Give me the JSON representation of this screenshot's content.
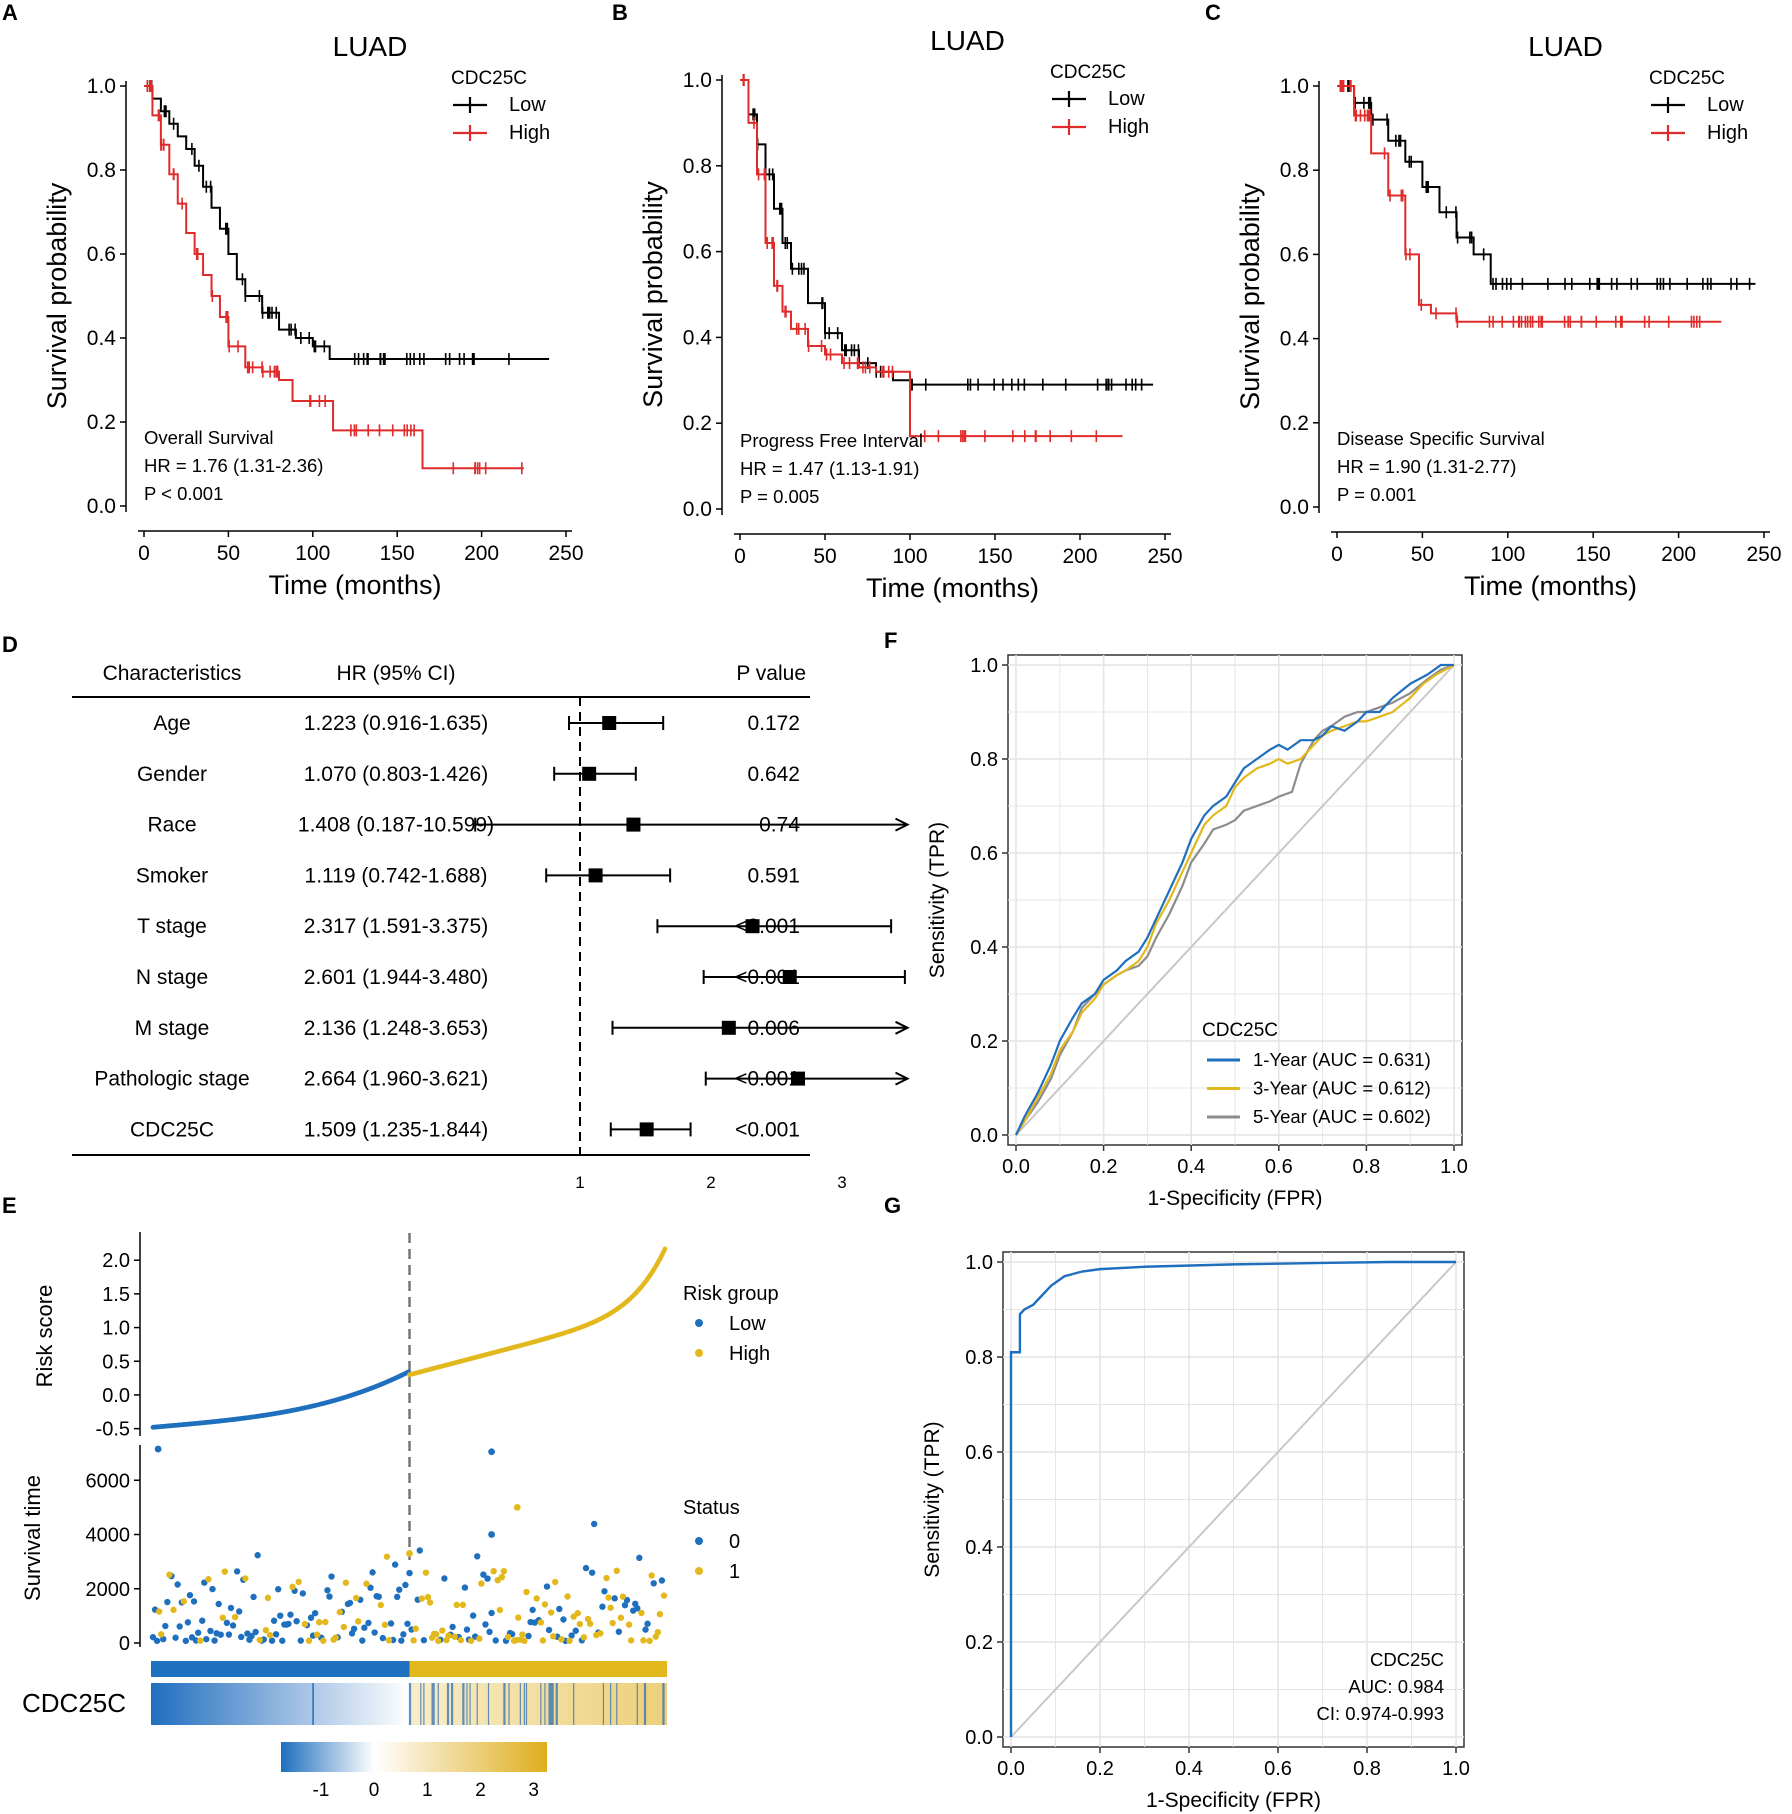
{
  "panel_labels": [
    "A",
    "B",
    "C",
    "D",
    "E",
    "F",
    "G"
  ],
  "km_colors": {
    "low": "#000000",
    "high": "#e02b2b"
  },
  "roc_colors": {
    "y1": "#1f6fbf",
    "y3": "#e3b81c",
    "y5": "#8c8c8c",
    "diag": "#c8c8c8"
  },
  "risk_colors": {
    "low": "#1f6fbf",
    "high": "#e3b81c"
  },
  "chart_data": [
    {
      "id": "A",
      "type": "line",
      "title": "LUAD",
      "xlabel": "Time (months)",
      "ylabel": "Survival probability",
      "xlim": [
        0,
        250
      ],
      "ylim": [
        0,
        1
      ],
      "xticks": [
        "0",
        "50",
        "100",
        "150",
        "200",
        "250"
      ],
      "yticks": [
        "0.0",
        "0.2",
        "0.4",
        "0.6",
        "0.8",
        "1.0"
      ],
      "legend_title": "CDC25C",
      "legend": [
        "Low",
        "High"
      ],
      "annotation": [
        "Overall Survival",
        "HR = 1.76 (1.31-2.36)",
        "P < 0.001"
      ],
      "series": [
        {
          "name": "Low",
          "x": [
            0,
            5,
            10,
            15,
            20,
            25,
            30,
            35,
            40,
            45,
            50,
            55,
            60,
            70,
            80,
            90,
            100,
            110,
            120,
            240
          ],
          "y": [
            1.0,
            0.97,
            0.94,
            0.91,
            0.88,
            0.85,
            0.81,
            0.76,
            0.71,
            0.66,
            0.6,
            0.54,
            0.5,
            0.46,
            0.42,
            0.4,
            0.38,
            0.35,
            0.35,
            0.35
          ]
        },
        {
          "name": "High",
          "x": [
            0,
            5,
            10,
            15,
            20,
            25,
            30,
            35,
            40,
            45,
            50,
            60,
            70,
            80,
            88,
            112,
            165,
            225
          ],
          "y": [
            1.0,
            0.93,
            0.86,
            0.79,
            0.72,
            0.65,
            0.6,
            0.55,
            0.5,
            0.45,
            0.38,
            0.33,
            0.32,
            0.3,
            0.25,
            0.18,
            0.09,
            0.09
          ]
        }
      ]
    },
    {
      "id": "B",
      "type": "line",
      "title": "LUAD",
      "xlabel": "Time (months)",
      "ylabel": "Survival probability",
      "xlim": [
        0,
        250
      ],
      "ylim": [
        0,
        1
      ],
      "xticks": [
        "0",
        "50",
        "100",
        "150",
        "200",
        "250"
      ],
      "yticks": [
        "0.0",
        "0.2",
        "0.4",
        "0.6",
        "0.8",
        "1.0"
      ],
      "legend_title": "CDC25C",
      "legend": [
        "Low",
        "High"
      ],
      "annotation": [
        "Progress Free Interval",
        "HR = 1.47 (1.13-1.91)",
        "P = 0.005"
      ],
      "series": [
        {
          "name": "Low",
          "x": [
            0,
            5,
            10,
            15,
            20,
            25,
            30,
            40,
            50,
            60,
            70,
            80,
            90,
            100,
            243
          ],
          "y": [
            1.0,
            0.92,
            0.85,
            0.78,
            0.7,
            0.62,
            0.56,
            0.48,
            0.41,
            0.37,
            0.34,
            0.32,
            0.3,
            0.29,
            0.29
          ]
        },
        {
          "name": "High",
          "x": [
            0,
            5,
            10,
            15,
            20,
            25,
            30,
            40,
            50,
            60,
            70,
            80,
            100,
            225
          ],
          "y": [
            1.0,
            0.9,
            0.78,
            0.62,
            0.52,
            0.46,
            0.42,
            0.38,
            0.36,
            0.34,
            0.33,
            0.32,
            0.17,
            0.17
          ]
        }
      ]
    },
    {
      "id": "C",
      "type": "line",
      "title": "LUAD",
      "xlabel": "Time (months)",
      "ylabel": "Survival probability",
      "xlim": [
        0,
        250
      ],
      "ylim": [
        0,
        1
      ],
      "xticks": [
        "0",
        "50",
        "100",
        "150",
        "200",
        "250"
      ],
      "yticks": [
        "0.0",
        "0.2",
        "0.4",
        "0.6",
        "0.8",
        "1.0"
      ],
      "legend_title": "CDC25C",
      "legend": [
        "Low",
        "High"
      ],
      "annotation": [
        "Disease Specific Survival",
        "HR = 1.90 (1.31-2.77)",
        "P = 0.001"
      ],
      "series": [
        {
          "name": "Low",
          "x": [
            0,
            10,
            20,
            30,
            40,
            50,
            60,
            70,
            80,
            90,
            245
          ],
          "y": [
            1.0,
            0.96,
            0.92,
            0.87,
            0.82,
            0.76,
            0.7,
            0.64,
            0.6,
            0.53,
            0.53
          ]
        },
        {
          "name": "High",
          "x": [
            0,
            10,
            20,
            30,
            40,
            48,
            55,
            70,
            225
          ],
          "y": [
            1.0,
            0.93,
            0.84,
            0.74,
            0.6,
            0.48,
            0.46,
            0.44,
            0.44
          ]
        }
      ]
    },
    {
      "id": "D",
      "type": "table",
      "headers": [
        "Characteristics",
        "HR (95% CI)",
        "P value"
      ],
      "rows": [
        {
          "name": "Age",
          "hr_text": "1.223 (0.916-1.635)",
          "p": "0.172",
          "hr": 1.223,
          "lo": 0.916,
          "hi": 1.635
        },
        {
          "name": "Gender",
          "hr_text": "1.070 (0.803-1.426)",
          "p": "0.642",
          "hr": 1.07,
          "lo": 0.803,
          "hi": 1.426
        },
        {
          "name": "Race",
          "hr_text": "1.408 (0.187-10.599)",
          "p": "0.74",
          "hr": 1.408,
          "lo": 0.187,
          "hi": 10.599
        },
        {
          "name": "Smoker",
          "hr_text": "1.119 (0.742-1.688)",
          "p": "0.591",
          "hr": 1.119,
          "lo": 0.742,
          "hi": 1.688
        },
        {
          "name": "T stage",
          "hr_text": "2.317 (1.591-3.375)",
          "p": "<0.001",
          "hr": 2.317,
          "lo": 1.591,
          "hi": 3.375
        },
        {
          "name": "N stage",
          "hr_text": "2.601 (1.944-3.480)",
          "p": "<0.001",
          "hr": 2.601,
          "lo": 1.944,
          "hi": 3.48
        },
        {
          "name": "M stage",
          "hr_text": "2.136 (1.248-3.653)",
          "p": "0.006",
          "hr": 2.136,
          "lo": 1.248,
          "hi": 3.653
        },
        {
          "name": "Pathologic stage",
          "hr_text": "2.664 (1.960-3.621)",
          "p": "<0.001",
          "hr": 2.664,
          "lo": 1.96,
          "hi": 3.621
        },
        {
          "name": "CDC25C",
          "hr_text": "1.509 (1.235-1.844)",
          "p": "<0.001",
          "hr": 1.509,
          "lo": 1.235,
          "hi": 1.844
        }
      ],
      "axis_ticks": [
        "1",
        "2",
        "3"
      ],
      "axis_range": [
        0.2,
        3.5
      ],
      "reference_line": 1
    },
    {
      "id": "E",
      "type": "scatter",
      "risk_ylabel": "Risk score",
      "risk_yticks": [
        "-0.5",
        "0.0",
        "0.5",
        "1.0",
        "1.5",
        "2.0"
      ],
      "risk_ylim": [
        -0.55,
        2.3
      ],
      "risk_legend_title": "Risk group",
      "risk_legend": [
        "Low",
        "High"
      ],
      "surv_ylabel": "Survival time",
      "surv_yticks": [
        "0",
        "2000",
        "4000",
        "6000"
      ],
      "surv_ylim": [
        0,
        7300
      ],
      "status_legend_title": "Status",
      "status_legend": [
        "0",
        "1"
      ],
      "gene_label": "CDC25C",
      "colorbar_ticks": [
        "-1",
        "0",
        "1",
        "2",
        "3"
      ],
      "colorbar_range": [
        -1.75,
        3.25
      ],
      "n_patients": 500,
      "cutoff_index": 250
    },
    {
      "id": "F",
      "type": "line",
      "xlabel": "1-Specificity (FPR)",
      "ylabel": "Sensitivity (TPR)",
      "xlim": [
        0,
        1
      ],
      "ylim": [
        0,
        1
      ],
      "xticks": [
        "0.0",
        "0.2",
        "0.4",
        "0.6",
        "0.8",
        "1.0"
      ],
      "yticks": [
        "0.0",
        "0.2",
        "0.4",
        "0.6",
        "0.8",
        "1.0"
      ],
      "legend_title": "CDC25C",
      "legend": [
        "1-Year (AUC = 0.631)",
        "3-Year (AUC = 0.612)",
        "5-Year (AUC = 0.602)"
      ],
      "series": [
        {
          "name": "1-Year (AUC = 0.631)",
          "x": [
            0,
            0.02,
            0.05,
            0.08,
            0.1,
            0.13,
            0.15,
            0.18,
            0.2,
            0.23,
            0.25,
            0.28,
            0.3,
            0.32,
            0.35,
            0.38,
            0.4,
            0.43,
            0.45,
            0.48,
            0.5,
            0.52,
            0.55,
            0.58,
            0.6,
            0.62,
            0.65,
            0.68,
            0.7,
            0.72,
            0.75,
            0.78,
            0.8,
            0.83,
            0.86,
            0.9,
            0.94,
            0.97,
            1.0
          ],
          "y": [
            0,
            0.04,
            0.09,
            0.15,
            0.2,
            0.25,
            0.28,
            0.3,
            0.33,
            0.35,
            0.37,
            0.39,
            0.42,
            0.46,
            0.52,
            0.58,
            0.63,
            0.68,
            0.7,
            0.72,
            0.75,
            0.78,
            0.8,
            0.82,
            0.83,
            0.82,
            0.84,
            0.84,
            0.85,
            0.87,
            0.86,
            0.88,
            0.9,
            0.9,
            0.93,
            0.96,
            0.98,
            1.0,
            1.0
          ]
        },
        {
          "name": "3-Year (AUC = 0.612)",
          "x": [
            0,
            0.02,
            0.05,
            0.08,
            0.1,
            0.13,
            0.15,
            0.18,
            0.2,
            0.23,
            0.25,
            0.28,
            0.3,
            0.32,
            0.35,
            0.38,
            0.4,
            0.43,
            0.45,
            0.48,
            0.5,
            0.52,
            0.55,
            0.58,
            0.6,
            0.62,
            0.65,
            0.68,
            0.7,
            0.72,
            0.75,
            0.78,
            0.8,
            0.83,
            0.86,
            0.9,
            0.93,
            0.96,
            1.0
          ],
          "y": [
            0,
            0.03,
            0.08,
            0.13,
            0.18,
            0.22,
            0.26,
            0.29,
            0.32,
            0.34,
            0.35,
            0.37,
            0.4,
            0.45,
            0.5,
            0.56,
            0.6,
            0.66,
            0.68,
            0.7,
            0.74,
            0.76,
            0.78,
            0.79,
            0.8,
            0.79,
            0.8,
            0.83,
            0.85,
            0.86,
            0.87,
            0.88,
            0.88,
            0.89,
            0.9,
            0.93,
            0.96,
            0.98,
            1.0
          ]
        },
        {
          "name": "5-Year (AUC = 0.602)",
          "x": [
            0,
            0.02,
            0.05,
            0.08,
            0.1,
            0.13,
            0.15,
            0.18,
            0.2,
            0.23,
            0.25,
            0.28,
            0.3,
            0.32,
            0.35,
            0.38,
            0.4,
            0.43,
            0.45,
            0.48,
            0.5,
            0.52,
            0.55,
            0.58,
            0.6,
            0.63,
            0.65,
            0.68,
            0.7,
            0.72,
            0.75,
            0.78,
            0.8,
            0.83,
            0.86,
            0.9,
            0.94,
            0.97,
            1.0
          ],
          "y": [
            0,
            0.03,
            0.07,
            0.12,
            0.17,
            0.22,
            0.27,
            0.3,
            0.32,
            0.34,
            0.35,
            0.36,
            0.38,
            0.42,
            0.47,
            0.53,
            0.58,
            0.62,
            0.65,
            0.66,
            0.67,
            0.69,
            0.7,
            0.71,
            0.72,
            0.73,
            0.79,
            0.84,
            0.86,
            0.87,
            0.89,
            0.9,
            0.9,
            0.91,
            0.92,
            0.94,
            0.97,
            0.99,
            1.0
          ]
        }
      ]
    },
    {
      "id": "G",
      "type": "line",
      "xlabel": "1-Specificity (FPR)",
      "ylabel": "Sensitivity (TPR)",
      "xlim": [
        0,
        1
      ],
      "ylim": [
        0,
        1
      ],
      "xticks": [
        "0.0",
        "0.2",
        "0.4",
        "0.6",
        "0.8",
        "1.0"
      ],
      "yticks": [
        "0.0",
        "0.2",
        "0.4",
        "0.6",
        "0.8",
        "1.0"
      ],
      "annotation": [
        "CDC25C",
        "AUC: 0.984",
        "CI: 0.974-0.993"
      ],
      "series": [
        {
          "name": "CDC25C",
          "x": [
            0,
            0,
            0.02,
            0.02,
            0.03,
            0.05,
            0.07,
            0.09,
            0.12,
            0.16,
            0.2,
            0.3,
            0.5,
            0.7,
            0.85,
            1.0
          ],
          "y": [
            0,
            0.81,
            0.81,
            0.89,
            0.9,
            0.91,
            0.93,
            0.95,
            0.97,
            0.98,
            0.985,
            0.99,
            0.995,
            0.998,
            1.0,
            1.0
          ]
        }
      ]
    }
  ]
}
